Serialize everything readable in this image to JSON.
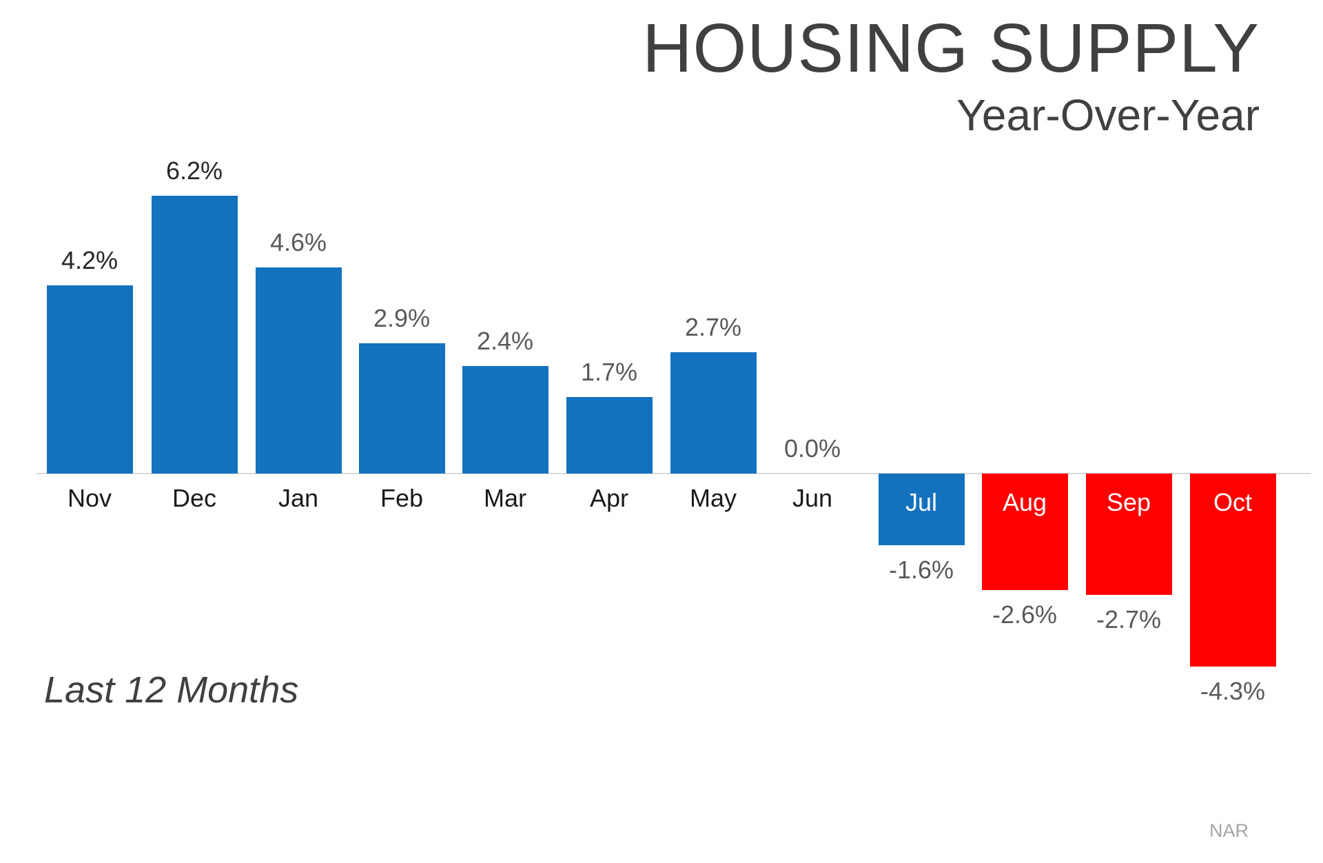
{
  "header": {
    "title": "HOUSING SUPPLY",
    "subtitle": "Year-Over-Year"
  },
  "footnote": "Last 12 Months",
  "source": "NAR",
  "colors": {
    "positive_bar": "#1471BE",
    "negative_bar": "#FE0000",
    "axis_line": "#D9D9D9",
    "title_text": "#404040",
    "month_label": "#1A1A1A",
    "month_label_inside": "#FFFFFF",
    "value_label_dark": "#262626",
    "value_label_gray": "#595959",
    "source_text": "#A6A6A6"
  },
  "chart_data": {
    "type": "bar",
    "title": "HOUSING SUPPLY",
    "subtitle": "Year-Over-Year",
    "categories": [
      "Nov",
      "Dec",
      "Jan",
      "Feb",
      "Mar",
      "Apr",
      "May",
      "Jun",
      "Jul",
      "Aug",
      "Sep",
      "Oct"
    ],
    "values": [
      4.2,
      6.2,
      4.6,
      2.9,
      2.4,
      1.7,
      2.7,
      0.0,
      -1.6,
      -2.6,
      -2.7,
      -4.3
    ],
    "value_labels": [
      "4.2%",
      "6.2%",
      "4.6%",
      "2.9%",
      "2.4%",
      "1.7%",
      "2.7%",
      "0.0%",
      "-1.6%",
      "-2.6%",
      "-2.7%",
      "-4.3%"
    ],
    "bar_colors": [
      "#1471BE",
      "#1471BE",
      "#1471BE",
      "#1471BE",
      "#1471BE",
      "#1471BE",
      "#1471BE",
      "#1471BE",
      "#1471BE",
      "#FE0000",
      "#FE0000",
      "#FE0000"
    ],
    "value_label_colors": [
      "#262626",
      "#262626",
      "#595959",
      "#595959",
      "#595959",
      "#595959",
      "#595959",
      "#595959",
      "#595959",
      "#595959",
      "#595959",
      "#595959"
    ],
    "xlabel": "",
    "ylabel": "",
    "ylim": [
      -4.5,
      6.5
    ],
    "grid": false,
    "legend": false
  }
}
